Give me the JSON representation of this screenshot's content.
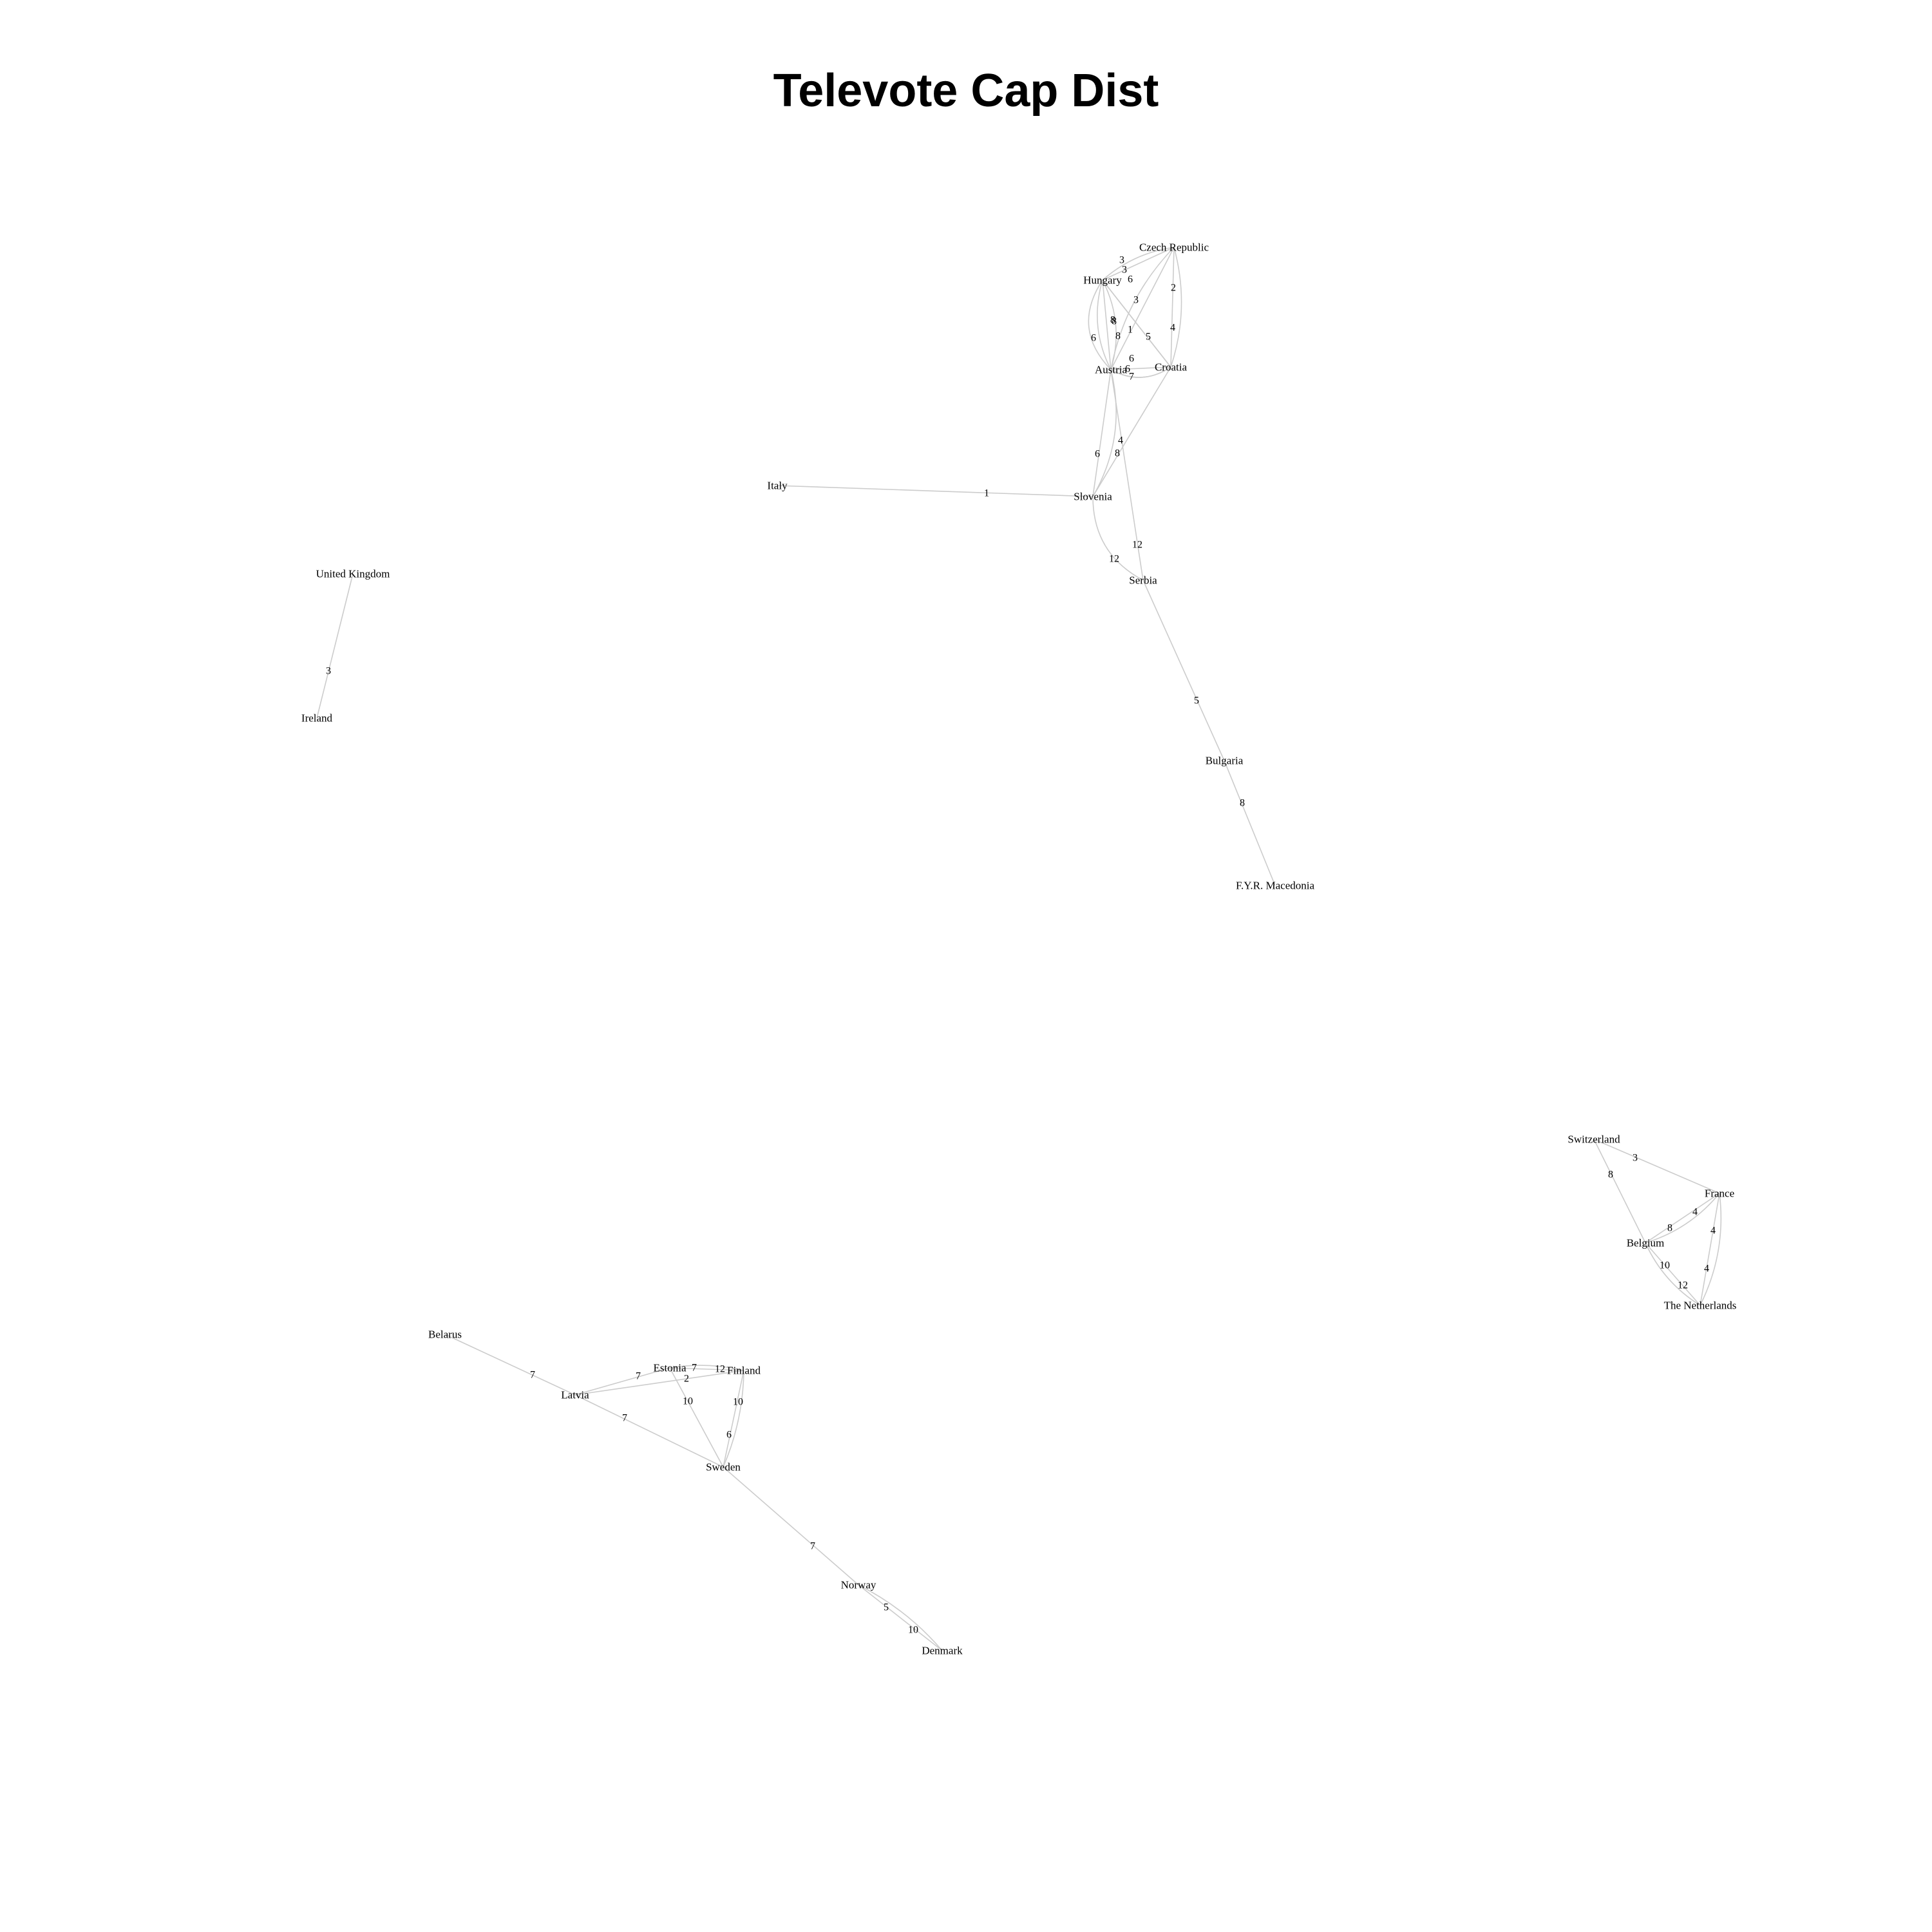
{
  "title": "Televote Cap Dist",
  "nodes": [
    {
      "id": "czech-republic",
      "label": "Czech Republic"
    },
    {
      "id": "hungary",
      "label": "Hungary"
    },
    {
      "id": "austria",
      "label": "Austria"
    },
    {
      "id": "croatia",
      "label": "Croatia"
    },
    {
      "id": "italy",
      "label": "Italy"
    },
    {
      "id": "slovenia",
      "label": "Slovenia"
    },
    {
      "id": "serbia",
      "label": "Serbia"
    },
    {
      "id": "bulgaria",
      "label": "Bulgaria"
    },
    {
      "id": "fyr-macedonia",
      "label": "F.Y.R. Macedonia"
    },
    {
      "id": "united-kingdom",
      "label": "United Kingdom"
    },
    {
      "id": "ireland",
      "label": "Ireland"
    },
    {
      "id": "switzerland",
      "label": "Switzerland"
    },
    {
      "id": "france",
      "label": "France"
    },
    {
      "id": "belgium",
      "label": "Belgium"
    },
    {
      "id": "the-netherlands",
      "label": "The Netherlands"
    },
    {
      "id": "belarus",
      "label": "Belarus"
    },
    {
      "id": "estonia",
      "label": "Estonia"
    },
    {
      "id": "finland",
      "label": "Finland"
    },
    {
      "id": "latvia",
      "label": "Latvia"
    },
    {
      "id": "sweden",
      "label": "Sweden"
    },
    {
      "id": "norway",
      "label": "Norway"
    },
    {
      "id": "denmark",
      "label": "Denmark"
    }
  ],
  "edges": [
    {
      "from": "hungary",
      "to": "czech-republic",
      "label": "3"
    },
    {
      "from": "czech-republic",
      "to": "hungary",
      "label": "3"
    },
    {
      "from": "hungary",
      "to": "croatia",
      "label": "6"
    },
    {
      "from": "czech-republic",
      "to": "croatia",
      "label": "2"
    },
    {
      "from": "croatia",
      "to": "czech-republic",
      "label": "4"
    },
    {
      "from": "czech-republic",
      "to": "austria",
      "label": "3"
    },
    {
      "from": "austria",
      "to": "czech-republic",
      "label": "1"
    },
    {
      "from": "hungary",
      "to": "austria",
      "label": "8"
    },
    {
      "from": "austria",
      "to": "hungary",
      "label": "8"
    },
    {
      "from": "hungary",
      "to": "austria",
      "label": "6"
    },
    {
      "from": "austria",
      "to": "hungary",
      "label": "8"
    },
    {
      "from": "hungary",
      "to": "croatia",
      "label": "5"
    },
    {
      "from": "croatia",
      "to": "austria",
      "label": "6"
    },
    {
      "from": "austria",
      "to": "croatia",
      "label": "6"
    },
    {
      "from": "croatia",
      "to": "austria",
      "label": "7"
    },
    {
      "from": "croatia",
      "to": "slovenia",
      "label": "4"
    },
    {
      "from": "austria",
      "to": "slovenia",
      "label": "6"
    },
    {
      "from": "slovenia",
      "to": "austria",
      "label": "8"
    },
    {
      "from": "italy",
      "to": "slovenia",
      "label": "1"
    },
    {
      "from": "slovenia",
      "to": "serbia",
      "label": "12"
    },
    {
      "from": "austria",
      "to": "serbia",
      "label": "12"
    },
    {
      "from": "serbia",
      "to": "bulgaria",
      "label": "5"
    },
    {
      "from": "bulgaria",
      "to": "fyr-macedonia",
      "label": "8"
    },
    {
      "from": "united-kingdom",
      "to": "ireland",
      "label": "3"
    },
    {
      "from": "switzerland",
      "to": "france",
      "label": "3"
    },
    {
      "from": "switzerland",
      "to": "belgium",
      "label": "8"
    },
    {
      "from": "france",
      "to": "belgium",
      "label": "4"
    },
    {
      "from": "belgium",
      "to": "france",
      "label": "8"
    },
    {
      "from": "france",
      "to": "the-netherlands",
      "label": "4"
    },
    {
      "from": "the-netherlands",
      "to": "france",
      "label": "4"
    },
    {
      "from": "belgium",
      "to": "the-netherlands",
      "label": "10"
    },
    {
      "from": "the-netherlands",
      "to": "belgium",
      "label": "12"
    },
    {
      "from": "belarus",
      "to": "latvia",
      "label": "7"
    },
    {
      "from": "latvia",
      "to": "estonia",
      "label": "7"
    },
    {
      "from": "estonia",
      "to": "finland",
      "label": "7"
    },
    {
      "from": "finland",
      "to": "estonia",
      "label": "12"
    },
    {
      "from": "latvia",
      "to": "finland",
      "label": "2"
    },
    {
      "from": "estonia",
      "to": "sweden",
      "label": "10"
    },
    {
      "from": "finland",
      "to": "sweden",
      "label": "10"
    },
    {
      "from": "sweden",
      "to": "finland",
      "label": "6"
    },
    {
      "from": "latvia",
      "to": "sweden",
      "label": "7"
    },
    {
      "from": "sweden",
      "to": "norway",
      "label": "7"
    },
    {
      "from": "norway",
      "to": "denmark",
      "label": "5"
    },
    {
      "from": "denmark",
      "to": "norway",
      "label": "10"
    }
  ]
}
